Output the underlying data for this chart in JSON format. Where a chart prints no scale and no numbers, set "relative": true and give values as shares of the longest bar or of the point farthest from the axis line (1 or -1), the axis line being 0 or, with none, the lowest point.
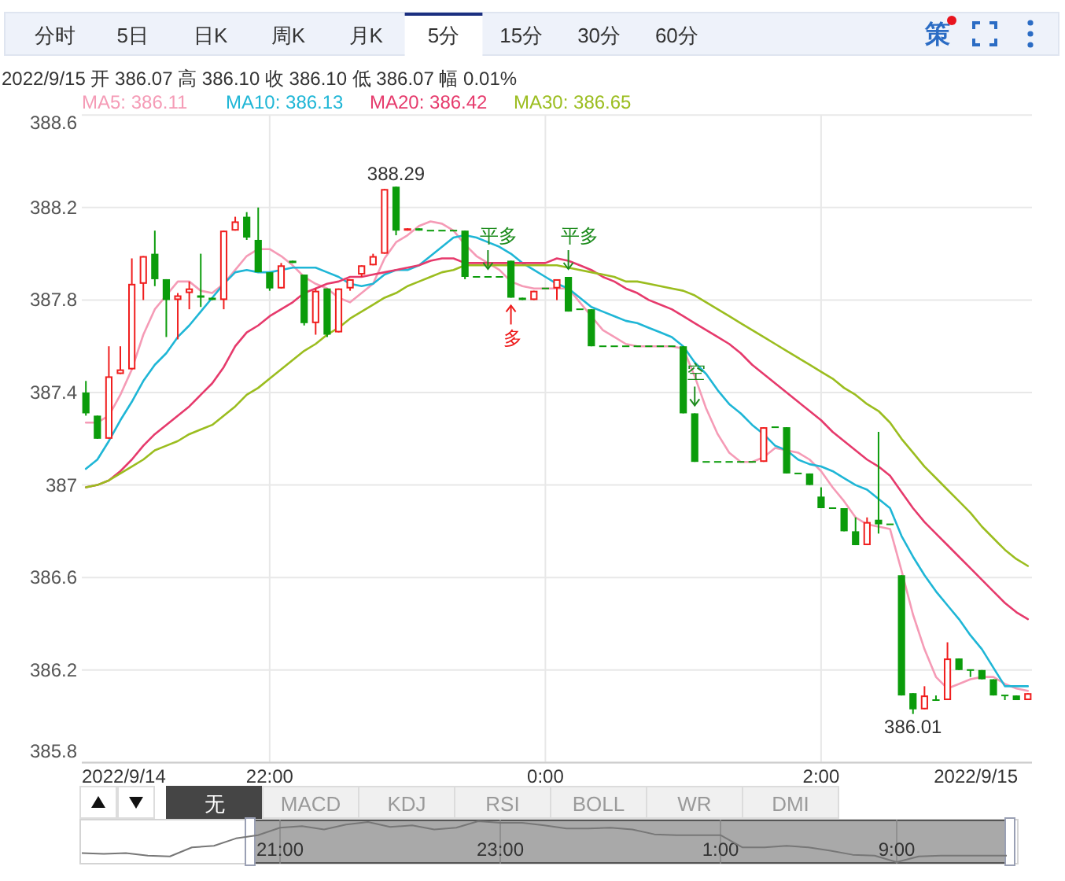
{
  "chart_data": [
    {
      "type": "other",
      "annotations": [
        "分时",
        "5日",
        "日K",
        "周K",
        "月K",
        "5分",
        "15分",
        "30分",
        "60分",
        "策"
      ]
    },
    {
      "type": "candlestick",
      "subtitle": "2022/9/15 开 386.07 高 386.10 收 386.10 低 386.07 幅 0.01%",
      "x": [
        "2022-09-14T20:40",
        "2022-09-14T20:45",
        "2022-09-14T20:50",
        "2022-09-14T20:55",
        "2022-09-14T21:00",
        "2022-09-14T21:05",
        "2022-09-14T21:10",
        "2022-09-14T21:15",
        "2022-09-14T21:20",
        "2022-09-14T21:25",
        "2022-09-14T21:30",
        "2022-09-14T21:35",
        "2022-09-14T21:40",
        "2022-09-14T21:45",
        "2022-09-14T21:50",
        "2022-09-14T21:55",
        "2022-09-14T22:00",
        "2022-09-14T22:05",
        "2022-09-14T22:10",
        "2022-09-14T22:15",
        "2022-09-14T22:20",
        "2022-09-14T22:25",
        "2022-09-14T22:30",
        "2022-09-14T22:35",
        "2022-09-14T22:40",
        "2022-09-14T22:45",
        "2022-09-14T22:50",
        "2022-09-14T22:55",
        "2022-09-14T23:00",
        "2022-09-14T23:05",
        "2022-09-14T23:10",
        "2022-09-14T23:15",
        "2022-09-14T23:20",
        "2022-09-14T23:25",
        "2022-09-14T23:30",
        "2022-09-14T23:35",
        "2022-09-14T23:40",
        "2022-09-14T23:45",
        "2022-09-14T23:50",
        "2022-09-14T23:55",
        "2022-09-15T00:00",
        "2022-09-15T00:05",
        "2022-09-15T00:10",
        "2022-09-15T00:15",
        "2022-09-15T00:20",
        "2022-09-15T00:25",
        "2022-09-15T00:30",
        "2022-09-15T00:35",
        "2022-09-15T00:40",
        "2022-09-15T00:45",
        "2022-09-15T00:50",
        "2022-09-15T00:55",
        "2022-09-15T01:00",
        "2022-09-15T01:05",
        "2022-09-15T01:10",
        "2022-09-15T01:15",
        "2022-09-15T01:20",
        "2022-09-15T01:25",
        "2022-09-15T01:30",
        "2022-09-15T01:35",
        "2022-09-15T01:40",
        "2022-09-15T01:45",
        "2022-09-15T01:50",
        "2022-09-15T01:55",
        "2022-09-15T02:00",
        "2022-09-15T02:05",
        "2022-09-15T02:10",
        "2022-09-15T02:15",
        "2022-09-15T02:20",
        "2022-09-15T02:25",
        "2022-09-15T02:30",
        "2022-09-15T02:35",
        "2022-09-15T02:40",
        "2022-09-15T02:45",
        "2022-09-15T02:50",
        "2022-09-15T02:55",
        "2022-09-15T03:00",
        "2022-09-15T03:05",
        "2022-09-15T03:10",
        "2022-09-15T03:15",
        "2022-09-15T03:20",
        "2022-09-15T03:25",
        "2022-09-15T03:30"
      ],
      "ohlc": [
        [
          387.4,
          387.45,
          387.3,
          387.31
        ],
        [
          387.3,
          387.3,
          387.2,
          387.2
        ],
        [
          387.2,
          387.6,
          387.2,
          387.47
        ],
        [
          387.48,
          387.6,
          387.48,
          387.5
        ],
        [
          387.5,
          387.98,
          387.5,
          387.87
        ],
        [
          387.87,
          387.99,
          387.8,
          387.99
        ],
        [
          388.0,
          388.1,
          387.86,
          387.89
        ],
        [
          387.89,
          387.89,
          387.64,
          387.8
        ],
        [
          387.8,
          387.83,
          387.63,
          387.82
        ],
        [
          387.83,
          387.88,
          387.76,
          387.85
        ],
        [
          387.82,
          388.0,
          387.77,
          387.81
        ],
        [
          387.81,
          387.81,
          387.8,
          387.8
        ],
        [
          387.8,
          388.1,
          387.76,
          388.1
        ],
        [
          388.1,
          388.16,
          388.1,
          388.14
        ],
        [
          388.16,
          388.18,
          388.06,
          388.07
        ],
        [
          388.06,
          388.2,
          387.92,
          387.92
        ],
        [
          387.92,
          387.92,
          387.84,
          387.85
        ],
        [
          387.85,
          387.96,
          387.85,
          387.95
        ],
        [
          387.97,
          387.97,
          387.96,
          387.96
        ],
        [
          387.91,
          387.91,
          387.69,
          387.7
        ],
        [
          387.7,
          387.85,
          387.65,
          387.84
        ],
        [
          387.85,
          387.85,
          387.64,
          387.65
        ],
        [
          387.66,
          387.85,
          387.66,
          387.85
        ],
        [
          387.85,
          387.89,
          387.84,
          387.89
        ],
        [
          387.91,
          387.95,
          387.9,
          387.95
        ],
        [
          387.95,
          388.0,
          387.95,
          387.99
        ],
        [
          388.0,
          388.28,
          388.0,
          388.28
        ],
        [
          388.29,
          388.29,
          388.08,
          388.1
        ],
        [
          388.1,
          388.11,
          388.1,
          388.11
        ],
        [
          388.11,
          388.11,
          388.1,
          388.1
        ],
        [
          388.1,
          388.1,
          388.1,
          388.1
        ],
        [
          388.1,
          388.1,
          388.1,
          388.1
        ],
        [
          388.1,
          388.1,
          388.1,
          388.1
        ],
        [
          388.1,
          388.1,
          387.89,
          387.9
        ],
        [
          387.9,
          387.9,
          387.9,
          387.9
        ],
        [
          387.9,
          387.9,
          387.9,
          387.9
        ],
        [
          387.9,
          387.9,
          387.9,
          387.9
        ],
        [
          387.97,
          387.97,
          387.81,
          387.81
        ],
        [
          387.81,
          387.81,
          387.8,
          387.8
        ],
        [
          387.8,
          387.84,
          387.8,
          387.84
        ],
        [
          387.85,
          387.85,
          387.85,
          387.85
        ],
        [
          387.85,
          387.89,
          387.8,
          387.89
        ],
        [
          387.9,
          387.9,
          387.75,
          387.75
        ],
        [
          387.76,
          387.76,
          387.76,
          387.76
        ],
        [
          387.76,
          387.76,
          387.6,
          387.6
        ],
        [
          387.6,
          387.6,
          387.6,
          387.6
        ],
        [
          387.6,
          387.6,
          387.6,
          387.6
        ],
        [
          387.6,
          387.6,
          387.6,
          387.6
        ],
        [
          387.6,
          387.6,
          387.6,
          387.6
        ],
        [
          387.6,
          387.6,
          387.6,
          387.6
        ],
        [
          387.6,
          387.6,
          387.6,
          387.6
        ],
        [
          387.6,
          387.6,
          387.6,
          387.6
        ],
        [
          387.6,
          387.6,
          387.31,
          387.31
        ],
        [
          387.31,
          387.31,
          387.1,
          387.1
        ],
        [
          387.1,
          387.1,
          387.1,
          387.1
        ],
        [
          387.1,
          387.1,
          387.1,
          387.1
        ],
        [
          387.1,
          387.1,
          387.1,
          387.1
        ],
        [
          387.1,
          387.1,
          387.1,
          387.1
        ],
        [
          387.1,
          387.1,
          387.1,
          387.1
        ],
        [
          387.1,
          387.25,
          387.1,
          387.25
        ],
        [
          387.25,
          387.25,
          387.25,
          387.25
        ],
        [
          387.25,
          387.25,
          387.05,
          387.05
        ],
        [
          387.05,
          387.05,
          387.05,
          387.05
        ],
        [
          387.05,
          387.05,
          387.0,
          387.0
        ],
        [
          386.95,
          386.99,
          386.9,
          386.9
        ],
        [
          386.9,
          386.9,
          386.9,
          386.9
        ],
        [
          386.9,
          386.9,
          386.8,
          386.8
        ],
        [
          386.8,
          386.86,
          386.74,
          386.74
        ],
        [
          386.74,
          386.86,
          386.74,
          386.84
        ],
        [
          386.85,
          387.23,
          386.79,
          386.83
        ],
        [
          386.83,
          386.83,
          386.83,
          386.83
        ],
        [
          386.61,
          386.61,
          386.09,
          386.09
        ],
        [
          386.1,
          386.1,
          386.01,
          386.03
        ],
        [
          386.03,
          386.13,
          386.03,
          386.09
        ],
        [
          386.07,
          386.09,
          386.07,
          386.07
        ],
        [
          386.07,
          386.32,
          386.07,
          386.25
        ],
        [
          386.25,
          386.25,
          386.2,
          386.2
        ],
        [
          386.2,
          386.2,
          386.17,
          386.2
        ],
        [
          386.2,
          386.2,
          386.16,
          386.16
        ],
        [
          386.16,
          386.16,
          386.09,
          386.09
        ],
        [
          386.09,
          386.09,
          386.07,
          386.09
        ],
        [
          386.09,
          386.09,
          386.07,
          386.07
        ],
        [
          386.07,
          386.1,
          386.07,
          386.1
        ]
      ],
      "colors": [
        "#0b9c0b",
        "#0b9c0b",
        "#f01e1e",
        "#f01e1e",
        "#f01e1e",
        "#f01e1e",
        "#0b9c0b",
        "#0b9c0b",
        "#f01e1e",
        "#f01e1e",
        "#0b9c0b",
        "#0b9c0b",
        "#f01e1e",
        "#f01e1e",
        "#0b9c0b",
        "#0b9c0b",
        "#0b9c0b",
        "#f01e1e",
        "#0b9c0b",
        "#0b9c0b",
        "#f01e1e",
        "#0b9c0b",
        "#f01e1e",
        "#f01e1e",
        "#f01e1e",
        "#f01e1e",
        "#f01e1e",
        "#0b9c0b",
        "#f01e1e",
        "#0b9c0b",
        "#0b9c0b",
        "#0b9c0b",
        "#0b9c0b",
        "#0b9c0b",
        "#0b9c0b",
        "#0b9c0b",
        "#0b9c0b",
        "#0b9c0b",
        "#0b9c0b",
        "#f01e1e",
        "#0b9c0b",
        "#f01e1e",
        "#0b9c0b",
        "#0b9c0b",
        "#0b9c0b",
        "#0b9c0b",
        "#0b9c0b",
        "#0b9c0b",
        "#0b9c0b",
        "#0b9c0b",
        "#0b9c0b",
        "#0b9c0b",
        "#0b9c0b",
        "#0b9c0b",
        "#0b9c0b",
        "#0b9c0b",
        "#0b9c0b",
        "#0b9c0b",
        "#0b9c0b",
        "#f01e1e",
        "#0b9c0b",
        "#0b9c0b",
        "#0b9c0b",
        "#0b9c0b",
        "#0b9c0b",
        "#0b9c0b",
        "#0b9c0b",
        "#0b9c0b",
        "#f01e1e",
        "#0b9c0b",
        "#0b9c0b",
        "#0b9c0b",
        "#0b9c0b",
        "#f01e1e",
        "#0b9c0b",
        "#f01e1e",
        "#0b9c0b",
        "#0b9c0b",
        "#0b9c0b",
        "#0b9c0b",
        "#0b9c0b",
        "#0b9c0b",
        "#f01e1e"
      ],
      "value_labels": [
        null,
        null,
        null,
        null,
        null,
        null,
        null,
        null,
        null,
        null,
        null,
        null,
        null,
        null,
        null,
        null,
        null,
        null,
        null,
        null,
        null,
        null,
        null,
        null,
        null,
        null,
        null,
        "388.29",
        null,
        null,
        null,
        null,
        null,
        null,
        null,
        null,
        null,
        null,
        null,
        null,
        null,
        null,
        null,
        null,
        null,
        null,
        null,
        null,
        null,
        null,
        null,
        null,
        null,
        null,
        null,
        null,
        null,
        null,
        null,
        null,
        null,
        null,
        null,
        null,
        null,
        null,
        null,
        null,
        null,
        null,
        null,
        null,
        "386.01",
        null,
        null,
        null,
        null,
        null,
        null,
        null,
        null,
        null,
        null
      ],
      "series": [
        {
          "name": "MA5: 386.11",
          "type": "line",
          "color": "#f59bb6",
          "values": [
            387.27,
            387.27,
            387.3,
            387.39,
            387.5,
            387.65,
            387.76,
            387.82,
            387.88,
            387.88,
            387.84,
            387.83,
            387.87,
            387.93,
            387.99,
            388.02,
            388.02,
            387.99,
            387.95,
            387.9,
            387.87,
            387.85,
            387.81,
            387.79,
            387.83,
            387.87,
            387.98,
            388.05,
            388.08,
            388.12,
            388.14,
            388.13,
            388.1,
            388.04,
            387.99,
            387.96,
            387.93,
            387.88,
            387.86,
            387.85,
            387.85,
            387.85,
            387.85,
            387.79,
            387.73,
            387.67,
            387.64,
            387.61,
            387.6,
            387.6,
            387.6,
            387.6,
            387.59,
            387.47,
            387.33,
            387.22,
            387.14,
            387.1,
            387.1,
            387.12,
            387.16,
            387.15,
            387.14,
            387.11,
            387.06,
            386.99,
            386.93,
            386.86,
            386.83,
            386.82,
            386.81,
            386.63,
            386.44,
            386.29,
            386.17,
            386.12,
            386.14,
            386.16,
            386.17,
            386.17,
            386.14,
            386.12,
            386.11
          ]
        },
        {
          "name": "MA10: 386.13",
          "type": "line",
          "color": "#1fb6d6",
          "values": [
            387.07,
            387.11,
            387.19,
            387.28,
            387.36,
            387.45,
            387.52,
            387.57,
            387.64,
            387.69,
            387.75,
            387.81,
            387.87,
            387.92,
            387.93,
            387.92,
            387.92,
            387.93,
            387.94,
            387.94,
            387.94,
            387.92,
            387.9,
            387.87,
            387.86,
            387.87,
            387.91,
            387.93,
            387.93,
            387.95,
            387.99,
            388.03,
            388.07,
            388.08,
            388.07,
            388.05,
            388.03,
            388.0,
            387.96,
            387.93,
            387.9,
            387.87,
            387.85,
            387.81,
            387.77,
            387.75,
            387.73,
            387.71,
            387.7,
            387.68,
            387.66,
            387.64,
            387.6,
            387.53,
            387.48,
            387.41,
            387.35,
            387.31,
            387.26,
            387.22,
            387.17,
            387.15,
            387.11,
            387.09,
            387.08,
            387.06,
            387.03,
            387.0,
            386.98,
            386.94,
            386.9,
            386.78,
            386.69,
            386.61,
            386.54,
            386.48,
            386.42,
            386.35,
            386.29,
            386.21,
            386.13,
            386.13,
            386.13
          ]
        },
        {
          "name": "MA20: 386.42",
          "type": "line",
          "color": "#e63a6c",
          "values": [
            386.99,
            387.0,
            387.02,
            387.06,
            387.11,
            387.17,
            387.22,
            387.26,
            387.3,
            387.34,
            387.39,
            387.44,
            387.51,
            387.6,
            387.66,
            387.69,
            387.73,
            387.76,
            387.79,
            387.83,
            387.85,
            387.87,
            387.88,
            387.9,
            387.9,
            387.91,
            387.92,
            387.93,
            387.94,
            387.95,
            387.97,
            387.98,
            387.98,
            387.96,
            387.96,
            387.96,
            387.96,
            387.96,
            387.96,
            387.96,
            387.96,
            387.98,
            387.97,
            387.95,
            387.93,
            387.9,
            387.88,
            387.85,
            387.83,
            387.8,
            387.78,
            387.76,
            387.73,
            387.7,
            387.67,
            387.64,
            387.61,
            387.57,
            387.52,
            387.48,
            387.44,
            387.4,
            387.36,
            387.32,
            387.28,
            387.23,
            387.19,
            387.15,
            387.11,
            387.08,
            387.04,
            386.97,
            386.9,
            386.84,
            386.79,
            386.74,
            386.69,
            386.64,
            386.59,
            386.54,
            386.49,
            386.45,
            386.42
          ]
        },
        {
          "name": "MA30: 386.65",
          "type": "line",
          "color": "#9bbd1f",
          "values": [
            386.99,
            387.0,
            387.02,
            387.05,
            387.08,
            387.11,
            387.15,
            387.17,
            387.19,
            387.22,
            387.24,
            387.26,
            387.3,
            387.34,
            387.39,
            387.42,
            387.46,
            387.5,
            387.54,
            387.58,
            387.61,
            387.65,
            387.68,
            387.72,
            387.75,
            387.78,
            387.81,
            387.83,
            387.86,
            387.88,
            387.9,
            387.92,
            387.93,
            387.95,
            387.95,
            387.95,
            387.95,
            387.95,
            387.95,
            387.95,
            387.95,
            387.95,
            387.94,
            387.93,
            387.92,
            387.91,
            387.9,
            387.88,
            387.88,
            387.87,
            387.86,
            387.85,
            387.84,
            387.82,
            387.79,
            387.76,
            387.73,
            387.7,
            387.67,
            387.64,
            387.61,
            387.58,
            387.55,
            387.52,
            387.49,
            387.46,
            387.42,
            387.39,
            387.35,
            387.32,
            387.27,
            387.2,
            387.14,
            387.08,
            387.03,
            386.98,
            386.93,
            386.88,
            386.82,
            386.77,
            386.72,
            386.68,
            386.65
          ]
        }
      ],
      "annotations": [
        {
          "text": "平多",
          "x": "2022-09-14T23:35",
          "y": 387.9
        },
        {
          "text": "多",
          "x": "2022-09-14T23:45",
          "y": 387.81
        },
        {
          "text": "平多",
          "x": "2022-09-15T00:10",
          "y": 387.9
        },
        {
          "text": "空",
          "x": "2022-09-15T01:05",
          "y": 387.31
        }
      ],
      "xlim": [
        "2022-09-14T20:40",
        "2022-09-15T03:30"
      ],
      "xticks": [
        {
          "value": "2022-09-14T20:40",
          "label": "2022/9/14"
        },
        {
          "value": "2022-09-14T22:00",
          "label": "22:00"
        },
        {
          "value": "2022-09-15T00:00",
          "label": "0:00"
        },
        {
          "value": "2022-09-15T02:00",
          "label": "2:00"
        },
        {
          "value": "2022-09-15T03:30",
          "label": "2022/9/15"
        }
      ],
      "ylim": [
        385.8,
        388.6
      ],
      "yticks": [
        385.8,
        386.2,
        386.6,
        387,
        387.4,
        387.8,
        388.2,
        388.6
      ],
      "grid": true,
      "legend": "top left"
    },
    {
      "type": "other",
      "annotations": [
        "无",
        "MACD",
        "KDJ",
        "RSI",
        "BOLL",
        "WR",
        "DMI"
      ]
    },
    {
      "type": "line",
      "relative": true,
      "color": "#777777",
      "grid": "x",
      "categories": [
        null,
        null,
        null,
        null,
        null,
        null,
        null,
        null,
        null,
        "21:00",
        null,
        null,
        null,
        null,
        null,
        null,
        null,
        null,
        null,
        "23:00",
        null,
        null,
        null,
        null,
        null,
        null,
        null,
        null,
        null,
        "1:00",
        null,
        null,
        null,
        null,
        null,
        null,
        null,
        "9:00",
        null,
        null,
        null,
        null,
        null
      ],
      "values": [
        0.22,
        0.2,
        0.22,
        0.16,
        0.14,
        0.36,
        0.4,
        0.58,
        0.66,
        0.84,
        0.88,
        0.8,
        0.92,
        0.98,
        0.86,
        0.9,
        0.8,
        0.84,
        1,
        0.96,
        0.96,
        0.9,
        0.82,
        0.82,
        0.84,
        0.8,
        0.68,
        0.66,
        0.66,
        0.66,
        0.36,
        0.36,
        0.4,
        0.36,
        0.28,
        0.18,
        0.16,
        0,
        0.14,
        0.16,
        0.16,
        0.16,
        0.16
      ]
    }
  ]
}
